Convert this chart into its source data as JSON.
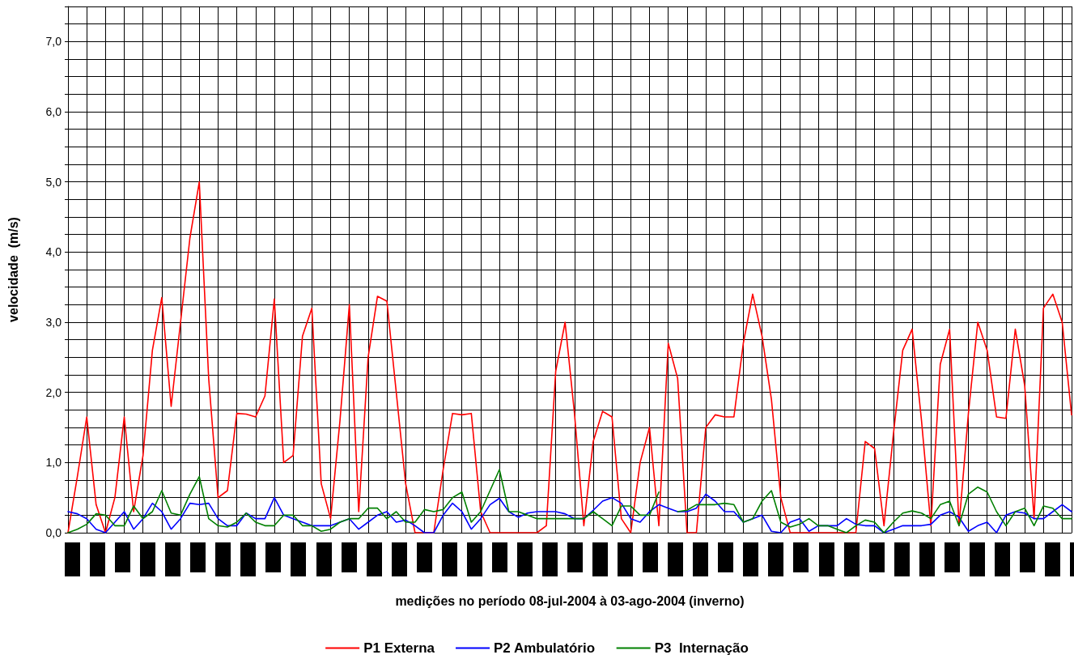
{
  "chart_data": {
    "type": "line",
    "xlabel": "medições no período 08-jul-2004 à 03-ago-2004 (inverno)",
    "ylabel": "velocidade  (m/s)",
    "categories": [
      null,
      null,
      null,
      null,
      null,
      null,
      null,
      null,
      null,
      null,
      null,
      null,
      null,
      null,
      null,
      null,
      null,
      null,
      null,
      null,
      null,
      null,
      null,
      null,
      null,
      null,
      null,
      null,
      null,
      null,
      null,
      null,
      null,
      null,
      null,
      null,
      null,
      null,
      null,
      null,
      null,
      null,
      null,
      null,
      null,
      null,
      null,
      null,
      null,
      null,
      null,
      null,
      null,
      null,
      null,
      null,
      null,
      null,
      null,
      null,
      null,
      null,
      null,
      null,
      null,
      null,
      null,
      null,
      null,
      null,
      null,
      null,
      null,
      null,
      null,
      null,
      null,
      null,
      null,
      null,
      null,
      null,
      null,
      null,
      null,
      null,
      null,
      null,
      null,
      null,
      null,
      null,
      null,
      null,
      null,
      null,
      null,
      null,
      null,
      null,
      null,
      null,
      null,
      null,
      null,
      null,
      null,
      null
    ],
    "series": [
      {
        "name": "P1 Externa",
        "color": "#ff0000",
        "values": [
          0,
          0.8,
          1.65,
          0.4,
          0,
          0.5,
          1.65,
          0.3,
          1.1,
          2.6,
          3.35,
          1.8,
          3.0,
          4.2,
          5.0,
          2.2,
          0.5,
          0.6,
          1.7,
          1.69,
          1.65,
          1.95,
          3.33,
          1.0,
          1.1,
          2.8,
          3.2,
          0.7,
          0.2,
          1.6,
          3.25,
          0.3,
          2.5,
          3.37,
          3.3,
          2.0,
          0.7,
          0,
          0,
          0,
          0.9,
          1.7,
          1.68,
          1.7,
          0.3,
          0,
          0,
          0,
          0,
          0,
          0,
          0.1,
          2.3,
          3.0,
          1.7,
          0.1,
          1.3,
          1.73,
          1.65,
          0.2,
          0,
          1.0,
          1.5,
          0.1,
          2.7,
          2.2,
          0,
          0,
          1.5,
          1.68,
          1.65,
          1.65,
          2.7,
          3.4,
          2.8,
          1.9,
          0.5,
          0,
          0,
          0,
          0,
          0,
          0,
          0,
          0,
          1.3,
          1.2,
          0.1,
          1.4,
          2.6,
          2.9,
          1.6,
          0.1,
          2.4,
          2.9,
          0.1,
          1.7,
          3.0,
          2.6,
          1.65,
          1.63,
          2.9,
          2.1,
          0.2,
          3.2,
          3.4,
          3.0,
          1.68
        ]
      },
      {
        "name": "P2 Ambulatório",
        "color": "#0000ff",
        "values": [
          0.3,
          0.27,
          0.2,
          0.05,
          0,
          0.15,
          0.3,
          0.05,
          0.2,
          0.42,
          0.3,
          0.05,
          0.2,
          0.42,
          0.4,
          0.42,
          0.2,
          0.1,
          0.1,
          0.28,
          0.2,
          0.2,
          0.5,
          0.25,
          0.2,
          0.15,
          0.1,
          0.1,
          0.1,
          0.15,
          0.2,
          0.05,
          0.15,
          0.25,
          0.3,
          0.15,
          0.18,
          0.1,
          0,
          0,
          0.25,
          0.42,
          0.3,
          0.05,
          0.2,
          0.4,
          0.49,
          0.3,
          0.22,
          0.28,
          0.3,
          0.3,
          0.3,
          0.27,
          0.2,
          0.2,
          0.32,
          0.45,
          0.5,
          0.42,
          0.2,
          0.15,
          0.3,
          0.4,
          0.35,
          0.3,
          0.3,
          0.35,
          0.55,
          0.45,
          0.3,
          0.3,
          0.15,
          0.2,
          0.25,
          0.02,
          0,
          0.15,
          0.2,
          0.02,
          0.1,
          0.1,
          0.1,
          0.2,
          0.12,
          0.1,
          0.1,
          0,
          0.05,
          0.1,
          0.1,
          0.1,
          0.12,
          0.25,
          0.3,
          0.22,
          0.02,
          0.1,
          0.15,
          0,
          0.25,
          0.3,
          0.28,
          0.2,
          0.2,
          0.3,
          0.4,
          0.3
        ]
      },
      {
        "name": "P3  Internação",
        "color": "#008000",
        "values": [
          0,
          0.05,
          0.12,
          0.27,
          0.25,
          0.1,
          0.1,
          0.38,
          0.2,
          0.3,
          0.6,
          0.28,
          0.25,
          0.55,
          0.8,
          0.2,
          0.1,
          0.08,
          0.15,
          0.28,
          0.15,
          0.1,
          0.1,
          0.25,
          0.25,
          0.1,
          0.1,
          0.02,
          0.05,
          0.15,
          0.2,
          0.2,
          0.35,
          0.35,
          0.2,
          0.3,
          0.15,
          0.15,
          0.33,
          0.3,
          0.33,
          0.5,
          0.58,
          0.15,
          0.3,
          0.6,
          0.9,
          0.3,
          0.3,
          0.25,
          0.2,
          0.2,
          0.2,
          0.2,
          0.2,
          0.2,
          0.3,
          0.2,
          0.1,
          0.38,
          0.38,
          0.25,
          0.25,
          0.58,
          null,
          0.3,
          0.32,
          0.4,
          0.4,
          0.4,
          0.42,
          0.4,
          0.15,
          0.2,
          0.45,
          0.6,
          0.15,
          0.08,
          0.12,
          0.2,
          0.1,
          0.1,
          0.05,
          0,
          0.1,
          0.18,
          0.15,
          0,
          0.15,
          0.28,
          0.31,
          0.28,
          0.2,
          0.4,
          0.45,
          0.1,
          0.55,
          0.65,
          0.58,
          0.3,
          0.1,
          0.3,
          0.35,
          0.1,
          0.38,
          0.35,
          0.2,
          0.2
        ]
      }
    ],
    "ylim": [
      0,
      7.5
    ],
    "yticks": [
      {
        "value": 0,
        "label": "0,0"
      },
      {
        "value": 0.25,
        "label": null
      },
      {
        "value": 0.5,
        "label": null
      },
      {
        "value": 0.75,
        "label": null
      },
      {
        "value": 1,
        "label": "1,0"
      },
      {
        "value": 1.25,
        "label": null
      },
      {
        "value": 1.5,
        "label": null
      },
      {
        "value": 1.75,
        "label": null
      },
      {
        "value": 2,
        "label": "2,0"
      },
      {
        "value": 2.25,
        "label": null
      },
      {
        "value": 2.5,
        "label": null
      },
      {
        "value": 2.75,
        "label": null
      },
      {
        "value": 3,
        "label": "3,0"
      },
      {
        "value": 3.25,
        "label": null
      },
      {
        "value": 3.5,
        "label": null
      },
      {
        "value": 3.75,
        "label": null
      },
      {
        "value": 4,
        "label": "4,0"
      },
      {
        "value": 4.25,
        "label": null
      },
      {
        "value": 4.5,
        "label": null
      },
      {
        "value": 4.75,
        "label": null
      },
      {
        "value": 5,
        "label": "5,0"
      },
      {
        "value": 5.25,
        "label": null
      },
      {
        "value": 5.5,
        "label": null
      },
      {
        "value": 5.75,
        "label": null
      },
      {
        "value": 6,
        "label": "6,0"
      },
      {
        "value": 6.25,
        "label": null
      },
      {
        "value": 6.5,
        "label": null
      },
      {
        "value": 6.75,
        "label": null
      },
      {
        "value": 7,
        "label": "7,0"
      },
      {
        "value": 7.25,
        "label": null
      },
      {
        "value": 7.5,
        "label": null
      }
    ],
    "grid": true,
    "legend": "bottom",
    "marker": "none",
    "line_style": "solid"
  }
}
